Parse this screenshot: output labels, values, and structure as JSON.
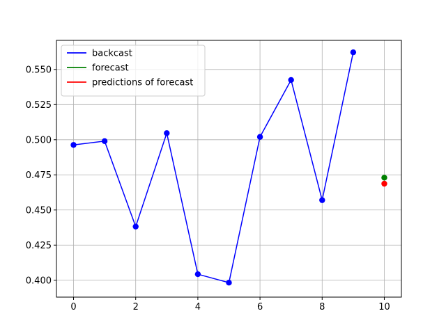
{
  "chart_data": {
    "type": "line",
    "title": "",
    "xlabel": "",
    "ylabel": "",
    "xlim": [
      -0.55,
      10.55
    ],
    "ylim": [
      0.388,
      0.5707
    ],
    "xticks": [
      0,
      2,
      4,
      6,
      8,
      10
    ],
    "yticks": [
      0.4,
      0.425,
      0.45,
      0.475,
      0.5,
      0.525,
      0.55
    ],
    "xtick_labels": [
      "0",
      "2",
      "4",
      "6",
      "8",
      "10"
    ],
    "ytick_labels": [
      "0.400",
      "0.425",
      "0.450",
      "0.475",
      "0.500",
      "0.525",
      "0.550"
    ],
    "grid": true,
    "legend_position": "top-left",
    "series": [
      {
        "name": "backcast",
        "color": "#0000ff",
        "style": "line+markers",
        "x": [
          0,
          1,
          2,
          3,
          4,
          5,
          6,
          7,
          8,
          9
        ],
        "y": [
          0.4963,
          0.499,
          0.4382,
          0.5047,
          0.4043,
          0.3983,
          0.502,
          0.5425,
          0.457,
          0.5622
        ]
      },
      {
        "name": "forecast",
        "color": "#008000",
        "style": "markers",
        "x": [
          10
        ],
        "y": [
          0.473
        ]
      },
      {
        "name": "predictions of forecast",
        "color": "#ff0000",
        "style": "markers",
        "x": [
          10
        ],
        "y": [
          0.4687
        ]
      }
    ]
  }
}
